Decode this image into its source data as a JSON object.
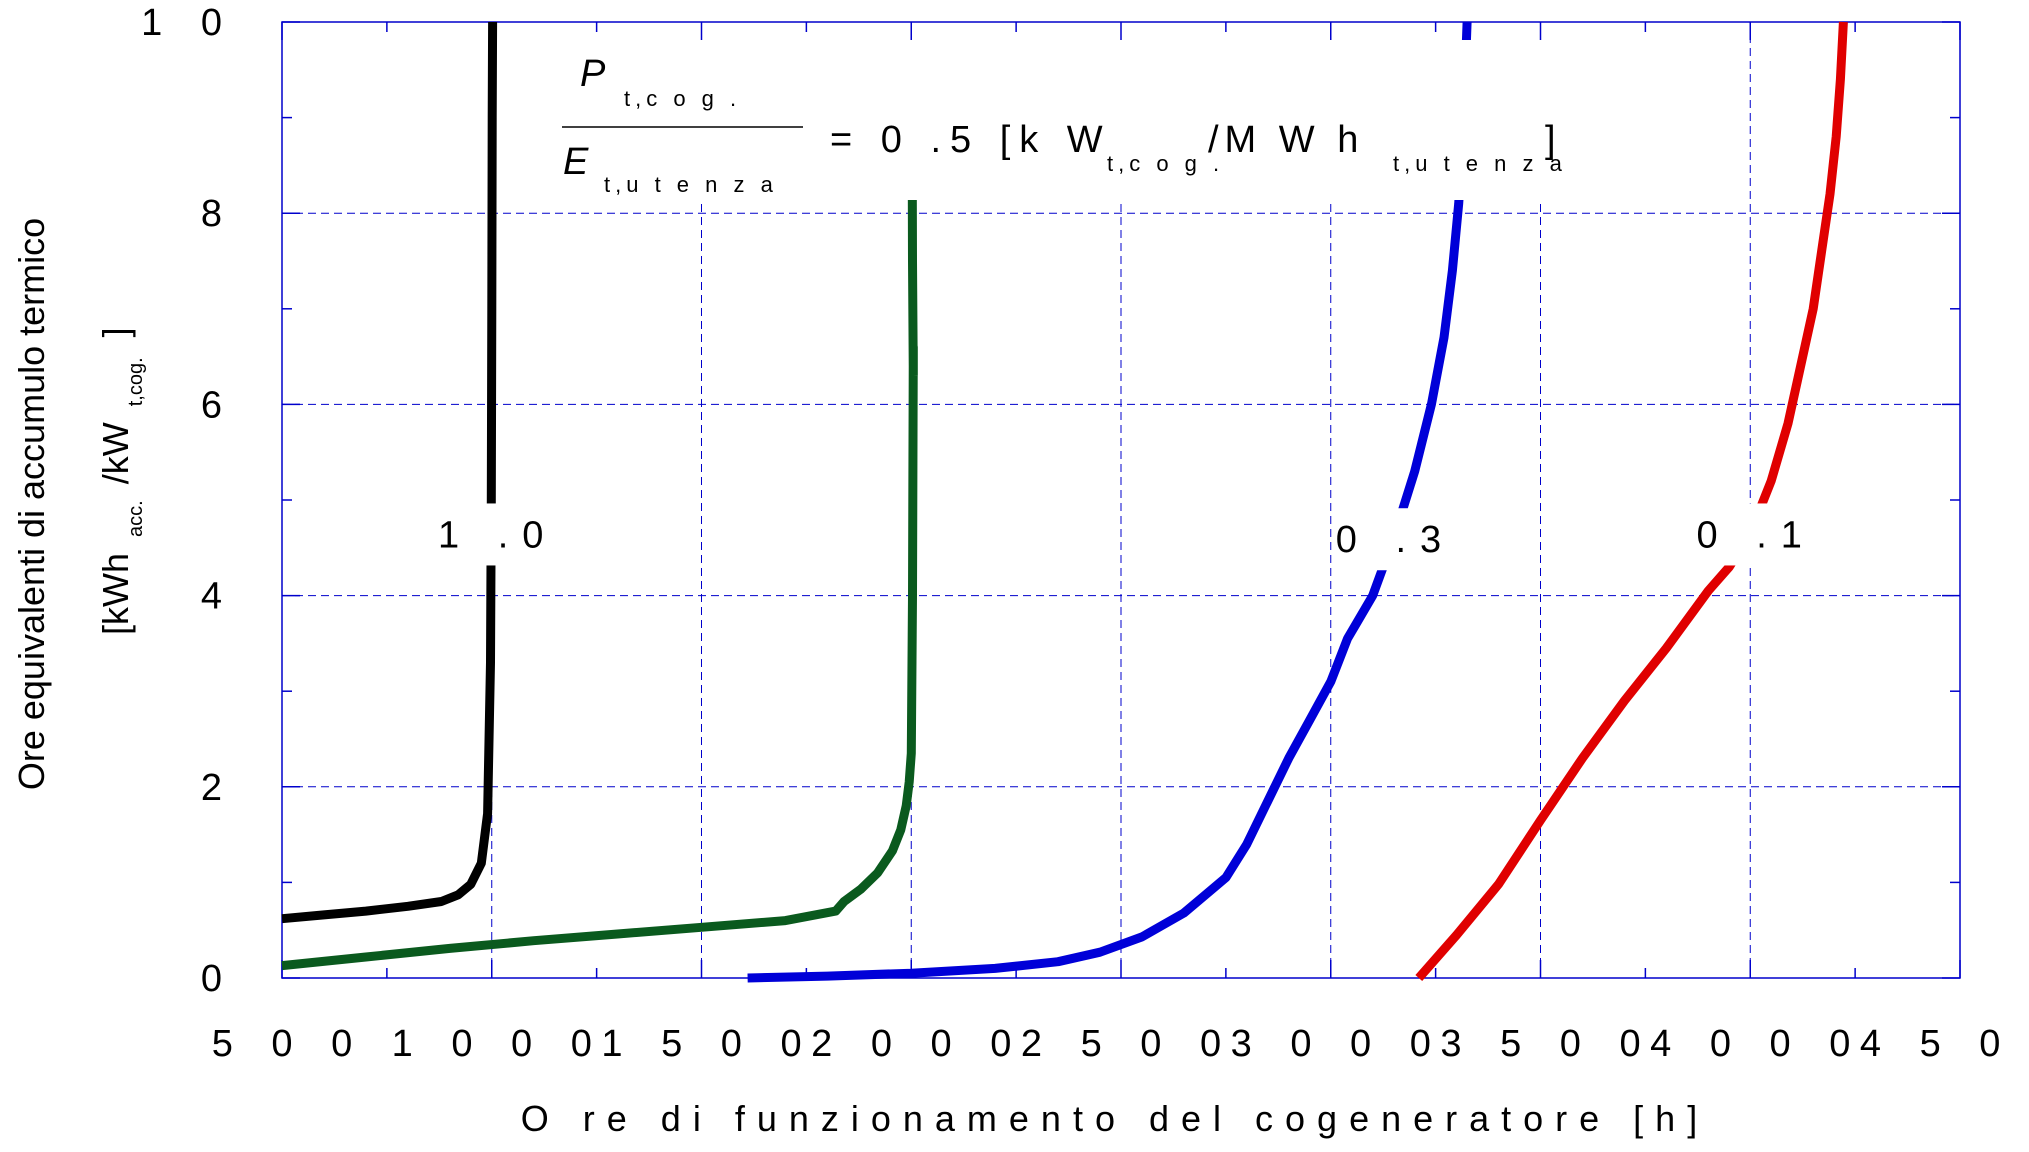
{
  "chart_data": {
    "type": "line",
    "title": "",
    "xlabel": "O re di funzionamento del cogeneratore [h]",
    "ylabel_line1": "Ore equivalenti di accumulo termico",
    "ylabel_line2": {
      "open": "[kWh",
      "sub1": "acc.",
      "mid": "/kW",
      "sub2": "t,cog.",
      "close": "]"
    },
    "xlim": [
      500,
      4500
    ],
    "ylim": [
      0,
      10
    ],
    "x_ticks": [
      500,
      1000,
      1500,
      2000,
      2500,
      3000,
      3500,
      4000,
      4500
    ],
    "y_ticks": [
      0,
      2,
      4,
      6,
      8,
      10
    ],
    "x_tick_labels": [
      "5 0 0",
      "1 0 0 0",
      "1 5 0 0",
      "2 0 0 0",
      "2 5 0 0",
      "3 0 0 0",
      "3 5 0 0",
      "4 0 0 0",
      "4 5 0 0"
    ],
    "y_tick_labels": [
      "0",
      "2",
      "4",
      "6",
      "8",
      "1 0"
    ],
    "grid": true,
    "annotation": {
      "numerator_main": "P",
      "numerator_sub": "t,c o g .",
      "denominator_main": "E",
      "denominator_sub": "t,u t e n z a",
      "equals": "= 0 .5  [k W",
      "unit_sub1": "t,c o g .",
      "unit_mid": "/M  W  h",
      "unit_sub2": "t,u t e n z a",
      "unit_close": "]"
    },
    "series": [
      {
        "label": "1 .0",
        "color": "#000000",
        "x": [
          500,
          600,
          700,
          800,
          880,
          920,
          950,
          975,
          990,
          997,
          999,
          1000,
          1001,
          1002
        ],
        "y": [
          0.62,
          0.66,
          0.7,
          0.75,
          0.8,
          0.87,
          0.98,
          1.2,
          1.72,
          3.3,
          5.0,
          7.0,
          9.0,
          10.0
        ]
      },
      {
        "label": "",
        "color": "#0a5a1e",
        "x": [
          500,
          700,
          900,
          1100,
          1300,
          1500,
          1700,
          1820,
          1840,
          1880,
          1920,
          1955,
          1975,
          1988,
          1995,
          2000,
          2003,
          2005,
          2005,
          2003,
          2002,
          2002
        ],
        "y": [
          0.13,
          0.22,
          0.31,
          0.39,
          0.46,
          0.53,
          0.6,
          0.7,
          0.8,
          0.93,
          1.1,
          1.33,
          1.55,
          1.8,
          2.05,
          2.35,
          4.0,
          6.6,
          6.3,
          7.5,
          9.0,
          9.8
        ]
      },
      {
        "label": "0 .3",
        "color": "#0000d8",
        "x": [
          1610,
          1800,
          2000,
          2200,
          2350,
          2450,
          2550,
          2650,
          2750,
          2800,
          2850,
          2900,
          2950,
          3000,
          3040,
          3060,
          3100,
          3150,
          3200,
          3240,
          3270,
          3290,
          3305,
          3315,
          3320,
          3325
        ],
        "y": [
          0.0,
          0.02,
          0.05,
          0.1,
          0.17,
          0.27,
          0.43,
          0.68,
          1.05,
          1.4,
          1.85,
          2.3,
          2.7,
          3.1,
          3.55,
          3.7,
          4.0,
          4.6,
          5.3,
          6.0,
          6.7,
          7.4,
          8.1,
          8.8,
          9.4,
          10.0
        ]
      },
      {
        "label": "0 .1",
        "color": "#e00000",
        "x": [
          3210,
          3300,
          3400,
          3500,
          3600,
          3700,
          3800,
          3900,
          3950,
          4000,
          4050,
          4090,
          4120,
          4150,
          4170,
          4190,
          4205,
          4215,
          4222
        ],
        "y": [
          0.0,
          0.45,
          0.98,
          1.65,
          2.3,
          2.9,
          3.45,
          4.05,
          4.3,
          4.65,
          5.2,
          5.8,
          6.4,
          7.0,
          7.6,
          8.2,
          8.8,
          9.4,
          10.0
        ]
      }
    ],
    "curve_labels": [
      {
        "text": "1 .0",
        "x": 1000,
        "y": 4.65
      },
      {
        "text": "0 .3",
        "x": 3140,
        "y": 4.6
      },
      {
        "text": "0 .1",
        "x": 4000,
        "y": 4.65
      }
    ],
    "grid_color": "#0000cc",
    "axis_color": "#0000cc"
  }
}
